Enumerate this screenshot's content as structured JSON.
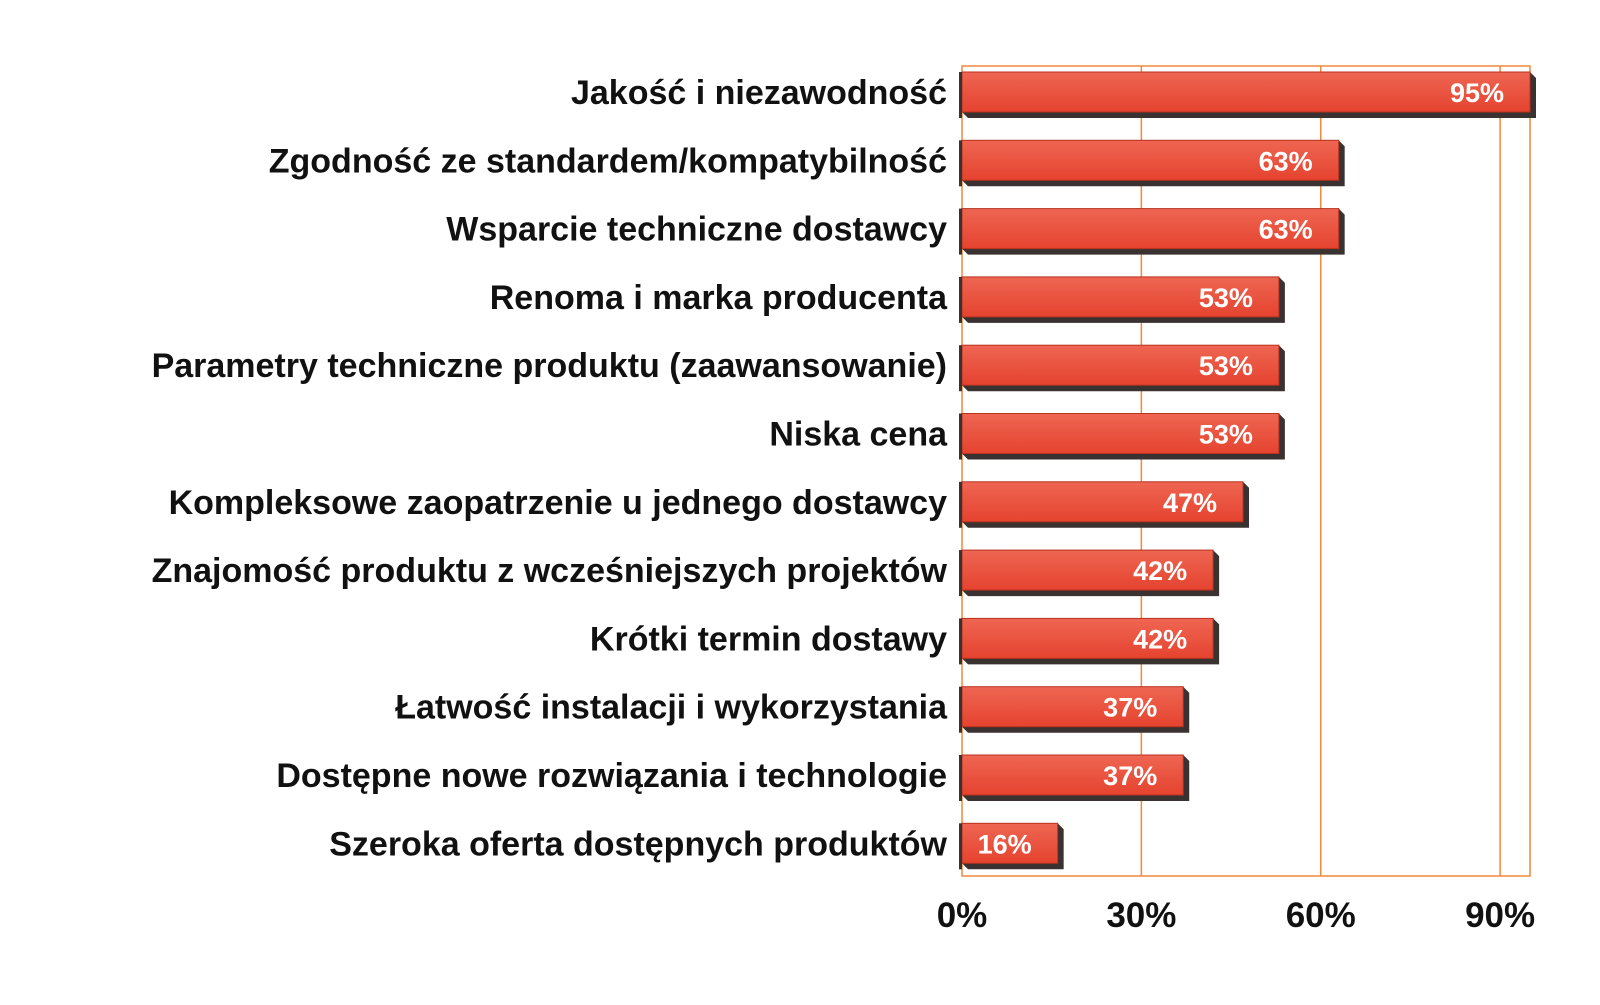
{
  "chart_data": {
    "type": "bar",
    "orientation": "horizontal",
    "categories": [
      "Jakość i niezawodność",
      "Zgodność ze standardem/kompatybilność",
      "Wsparcie techniczne dostawcy",
      "Renoma i marka producenta",
      "Parametry techniczne produktu (zaawansowanie)",
      "Niska cena",
      "Kompleksowe zaopatrzenie u jednego dostawcy",
      "Znajomość produktu z wcześniejszych projektów",
      "Krótki termin dostawy",
      "Łatwość instalacji i wykorzystania",
      "Dostępne nowe rozwiązania i technologie",
      "Szeroka oferta dostępnych produktów"
    ],
    "values": [
      95,
      63,
      63,
      53,
      53,
      53,
      47,
      42,
      42,
      37,
      37,
      16
    ],
    "data_labels": [
      "95%",
      "63%",
      "63%",
      "53%",
      "53%",
      "53%",
      "47%",
      "42%",
      "42%",
      "37%",
      "37%",
      "16%"
    ],
    "xlim": [
      0,
      95
    ],
    "xticks": [
      0,
      30,
      60,
      90
    ],
    "xtick_labels": [
      "0%",
      "30%",
      "60%",
      "90%"
    ],
    "grid": "vertical",
    "legend": "none",
    "colors": {
      "bar_face": "#e5432f",
      "bar_face_light": "#ee6652",
      "bar_shadow": "#3a3230",
      "grid_line": "#f0893a",
      "label_text": "#111111",
      "data_label_text": "#ffffff"
    }
  }
}
